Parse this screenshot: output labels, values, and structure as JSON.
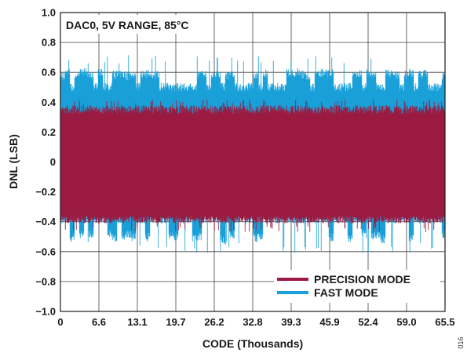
{
  "chart_data": {
    "type": "area",
    "annotation": "DAC0, 5V RANGE, 85°C",
    "xlabel": "CODE (Thousands)",
    "ylabel": "DNL (LSB)",
    "xlim": [
      0,
      65.535
    ],
    "ylim": [
      -1.0,
      1.0
    ],
    "x_ticks": [
      "0",
      "6.6",
      "13.1",
      "19.7",
      "26.2",
      "32.8",
      "39.3",
      "45.9",
      "52.4",
      "59.0",
      "65.5"
    ],
    "y_ticks": [
      "1.0",
      "0.8",
      "0.6",
      "0.4",
      "0.2",
      "0",
      "−0.2",
      "−0.4",
      "−0.6",
      "−0.8",
      "−1.0"
    ],
    "grid": true,
    "legend_position": "bottom-right",
    "series": [
      {
        "name": "FAST MODE",
        "color": "#1aa0d8",
        "typical_band": [
          -0.35,
          0.5
        ],
        "peak_range": [
          -0.61,
          0.72
        ]
      },
      {
        "name": "PRECISION MODE",
        "color": "#9b1b42",
        "typical_band": [
          -0.38,
          0.38
        ],
        "peak_range": [
          -0.47,
          0.42
        ]
      }
    ]
  },
  "figure_id": "016"
}
